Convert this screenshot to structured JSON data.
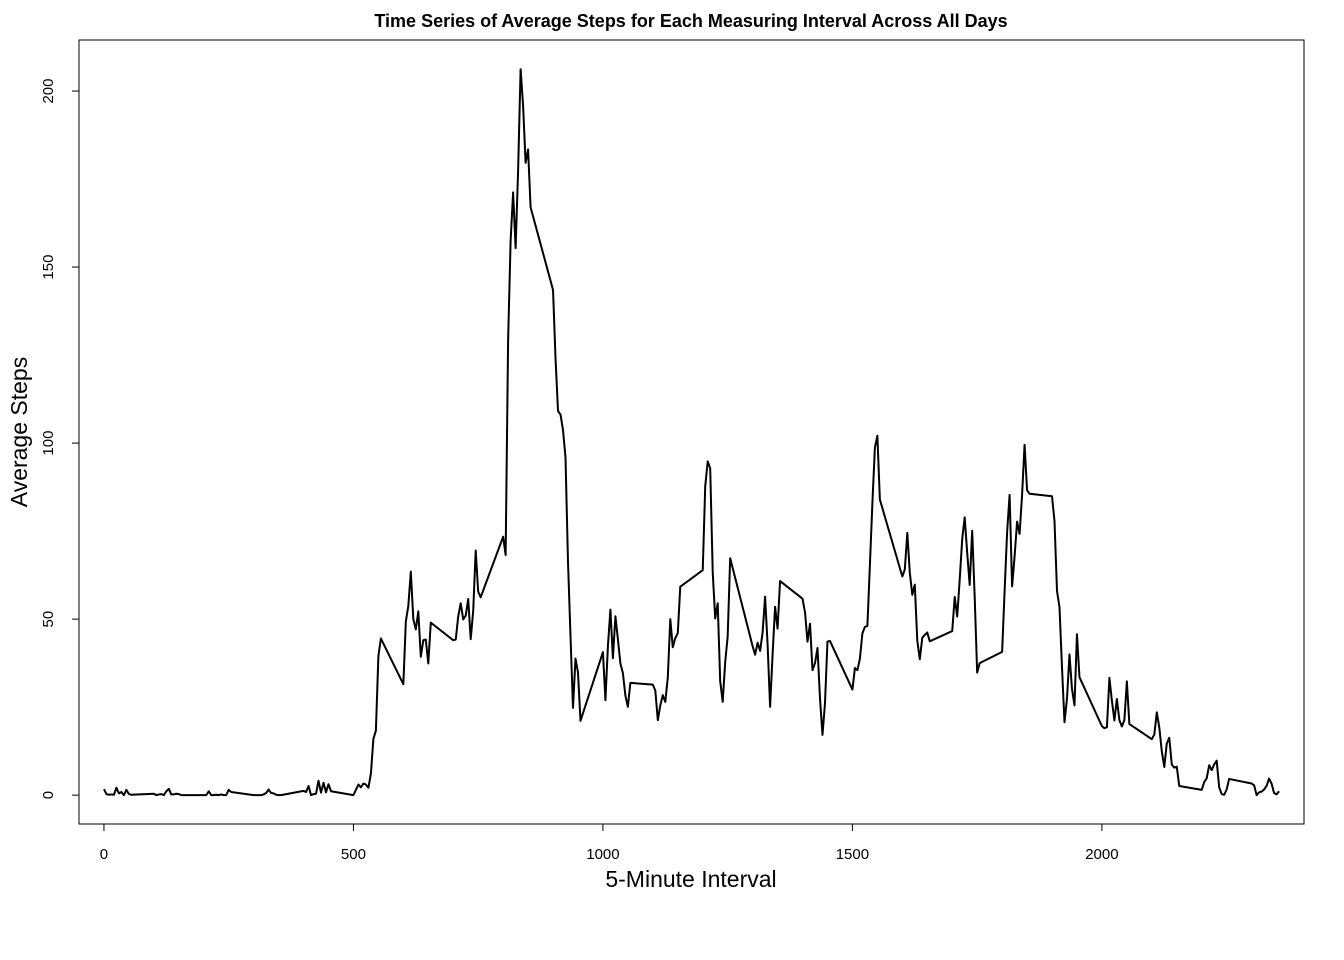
{
  "chart_data": {
    "type": "line",
    "title": "Time Series of Average Steps for Each Measuring Interval Across All Days",
    "xlabel": "5-Minute Interval",
    "ylabel": "Average Steps",
    "xlim": [
      -50,
      2405
    ],
    "ylim": [
      -8.2,
      214.5
    ],
    "xticks": [
      0,
      500,
      1000,
      1500,
      2000
    ],
    "yticks": [
      0,
      50,
      100,
      150,
      200
    ],
    "grid": false,
    "series": [
      {
        "color": "#000000",
        "points": [
          [
            0,
            1.7
          ],
          [
            5,
            0.3
          ],
          [
            10,
            0.1
          ],
          [
            15,
            0.2
          ],
          [
            20,
            0.1
          ],
          [
            25,
            2.1
          ],
          [
            30,
            0.5
          ],
          [
            35,
            0.9
          ],
          [
            40,
            0
          ],
          [
            45,
            1.5
          ],
          [
            50,
            0.3
          ],
          [
            55,
            0.1
          ],
          [
            100,
            0.4
          ],
          [
            105,
            0
          ],
          [
            110,
            0.2
          ],
          [
            115,
            0.3
          ],
          [
            120,
            0
          ],
          [
            125,
            1.1
          ],
          [
            130,
            1.8
          ],
          [
            135,
            0.2
          ],
          [
            140,
            0.2
          ],
          [
            145,
            0.4
          ],
          [
            150,
            0.3
          ],
          [
            155,
            0
          ],
          [
            200,
            0
          ],
          [
            205,
            0
          ],
          [
            210,
            1.1
          ],
          [
            215,
            0
          ],
          [
            220,
            0
          ],
          [
            225,
            0.1
          ],
          [
            230,
            0
          ],
          [
            235,
            0.2
          ],
          [
            240,
            0
          ],
          [
            245,
            0
          ],
          [
            250,
            1.5
          ],
          [
            255,
            0.9
          ],
          [
            300,
            0
          ],
          [
            305,
            0
          ],
          [
            310,
            0
          ],
          [
            315,
            0
          ],
          [
            320,
            0.2
          ],
          [
            325,
            0.6
          ],
          [
            330,
            1.6
          ],
          [
            335,
            0.6
          ],
          [
            340,
            0.5
          ],
          [
            345,
            0.1
          ],
          [
            350,
            0
          ],
          [
            355,
            0
          ],
          [
            400,
            1.2
          ],
          [
            405,
            0.9
          ],
          [
            410,
            2.6
          ],
          [
            415,
            0
          ],
          [
            420,
            0.3
          ],
          [
            425,
            0.4
          ],
          [
            430,
            4.1
          ],
          [
            435,
            0.7
          ],
          [
            440,
            3.5
          ],
          [
            445,
            0.8
          ],
          [
            450,
            3.1
          ],
          [
            455,
            1.1
          ],
          [
            500,
            0
          ],
          [
            505,
            1.5
          ],
          [
            510,
            3
          ],
          [
            515,
            2.2
          ],
          [
            520,
            3.3
          ],
          [
            525,
            3
          ],
          [
            530,
            2.1
          ],
          [
            535,
            6.1
          ],
          [
            540,
            16
          ],
          [
            545,
            18.3
          ],
          [
            550,
            39.5
          ],
          [
            555,
            44.5
          ],
          [
            600,
            31.5
          ],
          [
            605,
            49.3
          ],
          [
            610,
            53.8
          ],
          [
            615,
            63.5
          ],
          [
            620,
            50
          ],
          [
            625,
            47.1
          ],
          [
            630,
            52.2
          ],
          [
            635,
            39.3
          ],
          [
            640,
            44
          ],
          [
            645,
            44.2
          ],
          [
            650,
            37.4
          ],
          [
            655,
            49
          ],
          [
            700,
            44
          ],
          [
            705,
            44.2
          ],
          [
            710,
            50.8
          ],
          [
            715,
            54.5
          ],
          [
            720,
            49.9
          ],
          [
            725,
            51
          ],
          [
            730,
            55.7
          ],
          [
            735,
            44.3
          ],
          [
            740,
            52.3
          ],
          [
            745,
            69.5
          ],
          [
            750,
            57.8
          ],
          [
            755,
            56.2
          ],
          [
            800,
            73.4
          ],
          [
            805,
            68.2
          ],
          [
            810,
            129.4
          ],
          [
            815,
            157.5
          ],
          [
            820,
            171.2
          ],
          [
            825,
            155.4
          ],
          [
            830,
            177.3
          ],
          [
            835,
            206.2
          ],
          [
            840,
            195.9
          ],
          [
            845,
            179.6
          ],
          [
            850,
            183.4
          ],
          [
            855,
            167
          ],
          [
            900,
            143.5
          ],
          [
            905,
            124
          ],
          [
            910,
            109.1
          ],
          [
            915,
            108.1
          ],
          [
            920,
            103.7
          ],
          [
            925,
            95.9
          ],
          [
            930,
            66.2
          ],
          [
            935,
            45.2
          ],
          [
            940,
            24.8
          ],
          [
            945,
            38.8
          ],
          [
            950,
            34.9
          ],
          [
            955,
            21.1
          ],
          [
            1000,
            40.6
          ],
          [
            1005,
            26.98
          ],
          [
            1010,
            42.4
          ],
          [
            1015,
            52.7
          ],
          [
            1020,
            38.9
          ],
          [
            1025,
            50.8
          ],
          [
            1030,
            44.3
          ],
          [
            1035,
            37.4
          ],
          [
            1040,
            34.7
          ],
          [
            1045,
            28.3
          ],
          [
            1050,
            25.1
          ],
          [
            1055,
            31.9
          ],
          [
            1100,
            31.4
          ],
          [
            1105,
            29.7
          ],
          [
            1110,
            21.3
          ],
          [
            1115,
            25.5
          ],
          [
            1120,
            28.4
          ],
          [
            1125,
            26.5
          ],
          [
            1130,
            33.4
          ],
          [
            1135,
            50
          ],
          [
            1140,
            42
          ],
          [
            1145,
            44.6
          ],
          [
            1150,
            46
          ],
          [
            1155,
            59.2
          ],
          [
            1200,
            63.9
          ],
          [
            1205,
            87.7
          ],
          [
            1210,
            94.8
          ],
          [
            1215,
            92.8
          ],
          [
            1220,
            63.4
          ],
          [
            1225,
            50.2
          ],
          [
            1230,
            54.5
          ],
          [
            1235,
            32.4
          ],
          [
            1240,
            26.5
          ],
          [
            1245,
            37.7
          ],
          [
            1250,
            45.1
          ],
          [
            1255,
            67.3
          ],
          [
            1300,
            42.3
          ],
          [
            1305,
            39.9
          ],
          [
            1310,
            43.3
          ],
          [
            1315,
            40.98
          ],
          [
            1320,
            46.2
          ],
          [
            1325,
            56.4
          ],
          [
            1330,
            42.8
          ],
          [
            1335,
            25.1
          ],
          [
            1340,
            39.9
          ],
          [
            1345,
            53.5
          ],
          [
            1350,
            47.3
          ],
          [
            1355,
            60.8
          ],
          [
            1400,
            55.8
          ],
          [
            1405,
            51.9
          ],
          [
            1410,
            43.6
          ],
          [
            1415,
            48.7
          ],
          [
            1420,
            35.5
          ],
          [
            1425,
            37.5
          ],
          [
            1430,
            41.8
          ],
          [
            1435,
            27.5
          ],
          [
            1440,
            17.1
          ],
          [
            1445,
            26.1
          ],
          [
            1450,
            43.6
          ],
          [
            1455,
            43.8
          ],
          [
            1500,
            30
          ],
          [
            1505,
            36.1
          ],
          [
            1510,
            35.5
          ],
          [
            1515,
            38.8
          ],
          [
            1520,
            45.96
          ],
          [
            1525,
            47.8
          ],
          [
            1530,
            48.1
          ],
          [
            1535,
            65.3
          ],
          [
            1540,
            82.9
          ],
          [
            1545,
            98.7
          ],
          [
            1550,
            102.1
          ],
          [
            1555,
            83.96
          ],
          [
            1600,
            62.1
          ],
          [
            1605,
            64.1
          ],
          [
            1610,
            74.5
          ],
          [
            1615,
            63.2
          ],
          [
            1620,
            56.9
          ],
          [
            1625,
            59.8
          ],
          [
            1630,
            43.9
          ],
          [
            1635,
            38.6
          ],
          [
            1640,
            44.7
          ],
          [
            1645,
            45.5
          ],
          [
            1650,
            46.2
          ],
          [
            1655,
            43.7
          ],
          [
            1700,
            46.6
          ],
          [
            1705,
            56.3
          ],
          [
            1710,
            50.7
          ],
          [
            1715,
            61.2
          ],
          [
            1720,
            72.7
          ],
          [
            1725,
            78.9
          ],
          [
            1730,
            68.9
          ],
          [
            1735,
            59.7
          ],
          [
            1740,
            75.1
          ],
          [
            1745,
            56.5
          ],
          [
            1750,
            34.8
          ],
          [
            1755,
            37.5
          ],
          [
            1800,
            40.7
          ],
          [
            1805,
            58
          ],
          [
            1810,
            74.7
          ],
          [
            1815,
            85.3
          ],
          [
            1820,
            59.3
          ],
          [
            1825,
            67.8
          ],
          [
            1830,
            77.7
          ],
          [
            1835,
            74.2
          ],
          [
            1840,
            85.3
          ],
          [
            1845,
            99.5
          ],
          [
            1850,
            86.6
          ],
          [
            1855,
            85.6
          ],
          [
            1900,
            84.9
          ],
          [
            1905,
            77.8
          ],
          [
            1910,
            58
          ],
          [
            1915,
            53.4
          ],
          [
            1920,
            36.3
          ],
          [
            1925,
            20.7
          ],
          [
            1930,
            27.4
          ],
          [
            1935,
            40
          ],
          [
            1940,
            30.2
          ],
          [
            1945,
            25.5
          ],
          [
            1950,
            45.7
          ],
          [
            1955,
            33.5
          ],
          [
            2000,
            19.6
          ],
          [
            2005,
            19
          ],
          [
            2010,
            19.3
          ],
          [
            2015,
            33.3
          ],
          [
            2020,
            26.8
          ],
          [
            2025,
            21.2
          ],
          [
            2030,
            27.3
          ],
          [
            2035,
            21.3
          ],
          [
            2040,
            19.5
          ],
          [
            2045,
            21.3
          ],
          [
            2050,
            32.3
          ],
          [
            2055,
            20.2
          ],
          [
            2100,
            15.9
          ],
          [
            2105,
            17.2
          ],
          [
            2110,
            23.5
          ],
          [
            2115,
            19.2
          ],
          [
            2120,
            12.5
          ],
          [
            2125,
            8
          ],
          [
            2130,
            14.7
          ],
          [
            2135,
            16.3
          ],
          [
            2140,
            8.7
          ],
          [
            2145,
            7.8
          ],
          [
            2150,
            8.1
          ],
          [
            2155,
            2.6
          ],
          [
            2200,
            1.5
          ],
          [
            2205,
            3.7
          ],
          [
            2210,
            4.8
          ],
          [
            2215,
            8.5
          ],
          [
            2220,
            7.1
          ],
          [
            2225,
            8.7
          ],
          [
            2230,
            9.8
          ],
          [
            2235,
            2.2
          ],
          [
            2240,
            0.3
          ],
          [
            2245,
            0.1
          ],
          [
            2250,
            1.6
          ],
          [
            2255,
            4.6
          ],
          [
            2300,
            3.3
          ],
          [
            2305,
            2.8
          ],
          [
            2310,
            0
          ],
          [
            2315,
            0.8
          ],
          [
            2320,
            1
          ],
          [
            2325,
            1.6
          ],
          [
            2330,
            2.6
          ],
          [
            2335,
            4.7
          ],
          [
            2340,
            3.3
          ],
          [
            2345,
            0.6
          ],
          [
            2350,
            0.2
          ],
          [
            2355,
            1.1
          ]
        ]
      }
    ]
  }
}
